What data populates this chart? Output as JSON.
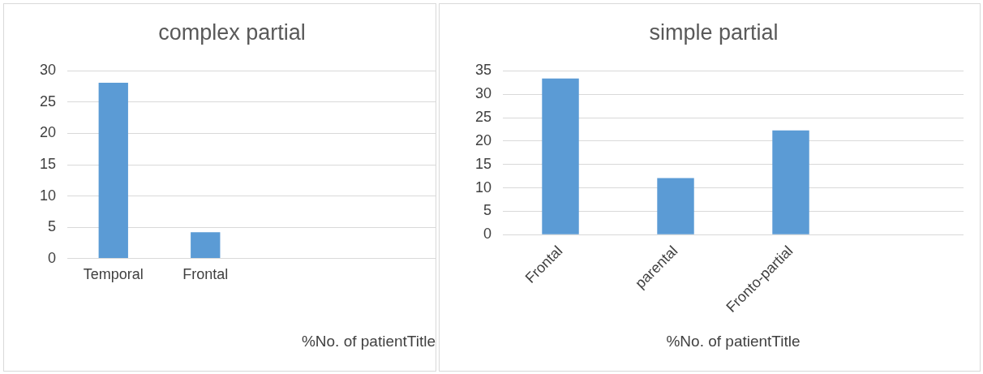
{
  "chart_data": [
    {
      "type": "bar",
      "title": "complex partial",
      "xlabel": "%No. of patientTitle",
      "categories": [
        "Temporal",
        "Frontal",
        null,
        null
      ],
      "values": [
        28.1,
        4.2,
        null,
        null
      ],
      "color": "#5b9bd5",
      "ylim": [
        0,
        30
      ],
      "yticks": [
        0,
        5,
        10,
        15,
        20,
        25,
        30
      ],
      "grid": "y",
      "legend": false
    },
    {
      "type": "bar",
      "title": "simple partial",
      "xlabel": "%No. of patientTitle",
      "categories": [
        "Frontal",
        "parental",
        "Fronto-partial",
        null
      ],
      "values": [
        33.4,
        12.1,
        22.3,
        null
      ],
      "color": "#5b9bd5",
      "ylim": [
        0,
        35
      ],
      "yticks": [
        0,
        5,
        10,
        15,
        20,
        25,
        30,
        35
      ],
      "grid": "y",
      "legend": false
    }
  ]
}
